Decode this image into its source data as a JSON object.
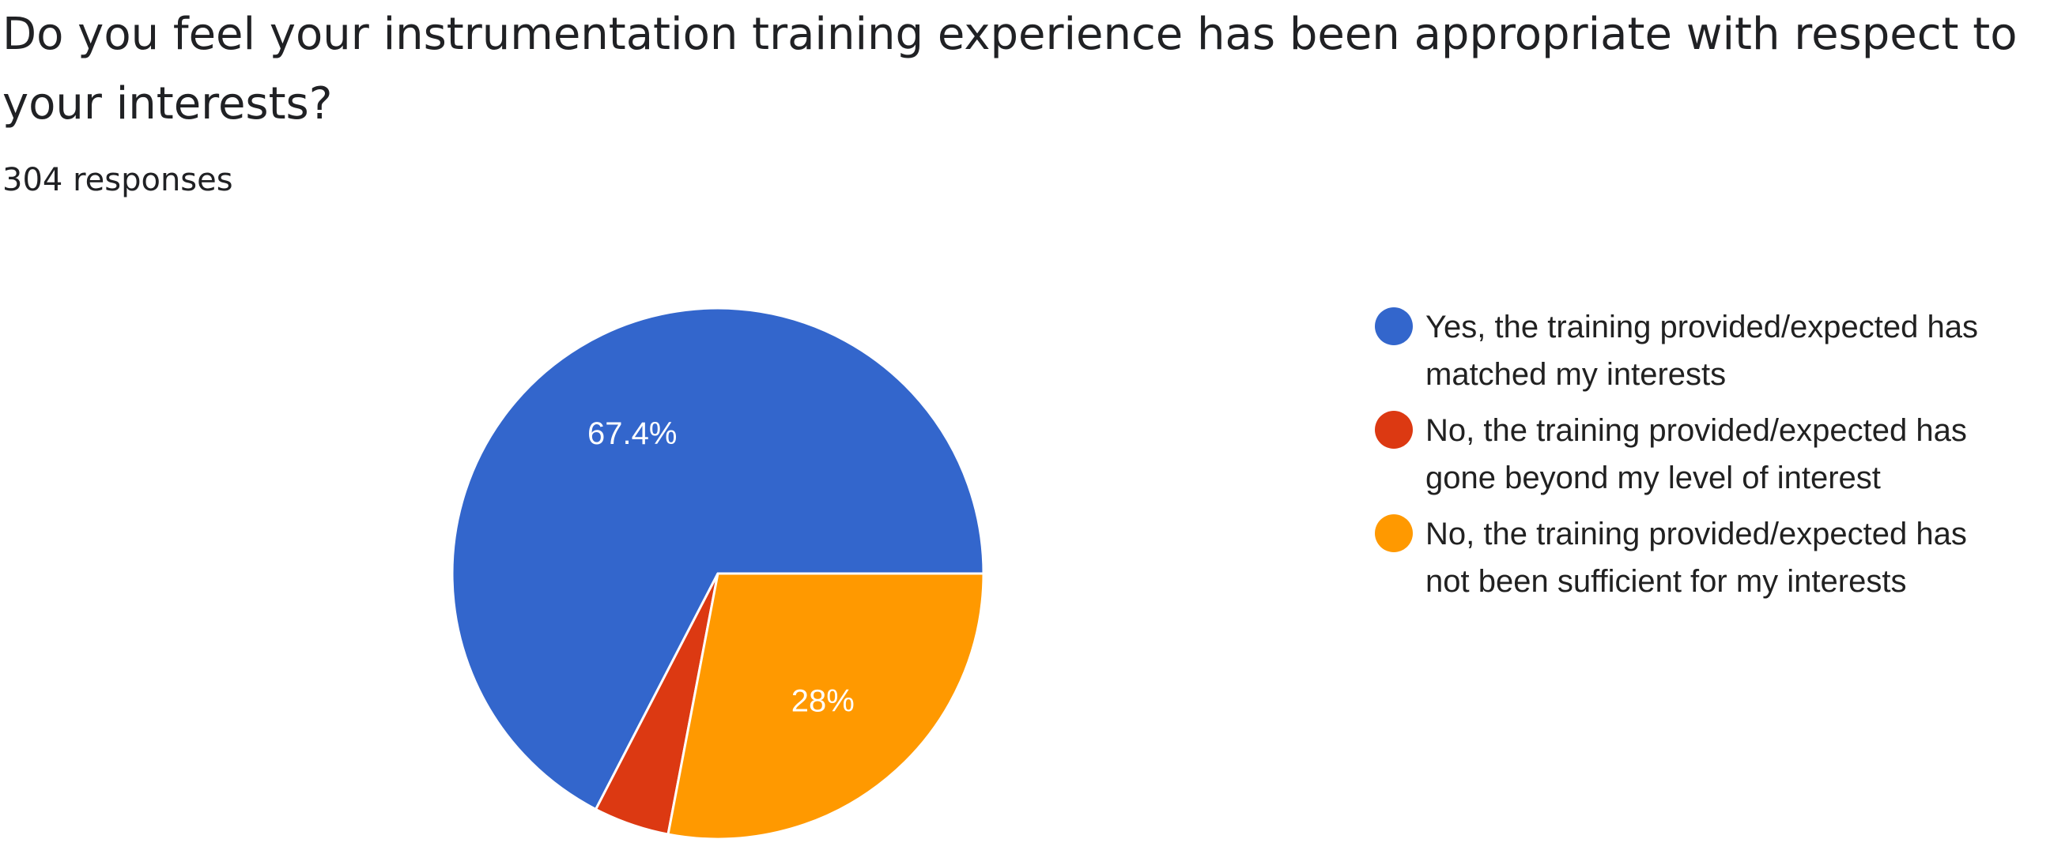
{
  "question": {
    "title": "Do you feel your instrumentation training experience has been appropriate with respect to your interests?",
    "responses": "304 responses"
  },
  "chart_data": {
    "type": "pie",
    "title": "Do you feel your instrumentation training experience has been appropriate with respect to your interests?",
    "subtitle": "304 responses",
    "slices": [
      {
        "name": "Yes, the training provided/expected has matched my interests",
        "legend_lines": [
          "Yes, the training provided/expected has",
          "matched my interests"
        ],
        "percent": 67.4,
        "label": "67.4%",
        "color": "#3366cc"
      },
      {
        "name": "No, the training provided/expected has gone beyond my level of interest",
        "legend_lines": [
          "No, the training provided/expected has",
          "gone beyond my level of interest"
        ],
        "percent": 4.6,
        "label": "",
        "color": "#dc3912"
      },
      {
        "name": "No, the training provided/expected has not been sufficient for my interests",
        "legend_lines": [
          "No, the training provided/expected has",
          "not been sufficient for my interests"
        ],
        "percent": 28,
        "label": "28%",
        "color": "#ff9900"
      }
    ],
    "start_direction": "3-o'clock",
    "slice_direction": "counter-clockwise",
    "legend_position": "right"
  }
}
